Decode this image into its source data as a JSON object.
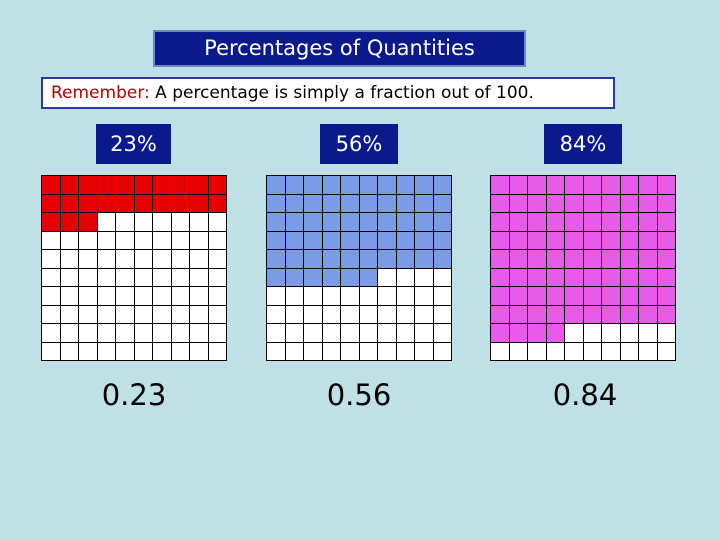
{
  "title": "Percentages of Quantities",
  "remember": {
    "label": "Remember:",
    "text": " A percentage is simply a fraction out of 100."
  },
  "panels": [
    {
      "percent_label": "23%",
      "decimal_label": "0.23",
      "filled": 23,
      "color": "#e60000"
    },
    {
      "percent_label": "56%",
      "decimal_label": "0.56",
      "filled": 56,
      "color": "#7a9be6"
    },
    {
      "percent_label": "84%",
      "decimal_label": "0.84",
      "filled": 84,
      "color": "#e85ae8"
    }
  ]
}
